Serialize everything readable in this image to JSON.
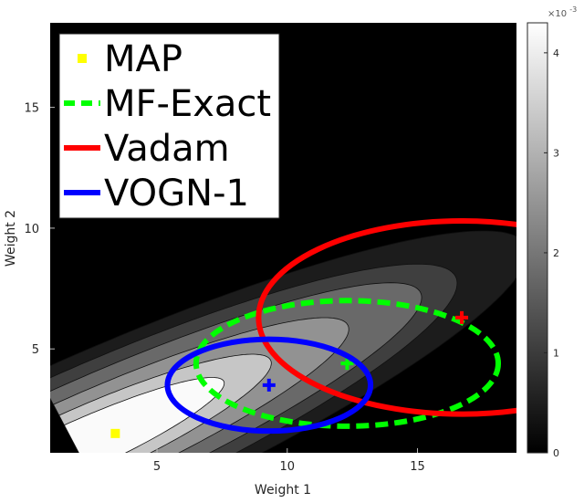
{
  "chart_data": {
    "type": "contour",
    "xlabel": "Weight 1",
    "ylabel": "Weight 2",
    "xlim": [
      0.9,
      18.8
    ],
    "ylim": [
      0.7,
      18.5
    ],
    "xticks": [
      5,
      10,
      15
    ],
    "yticks": [
      5,
      10,
      15
    ],
    "colorbar": {
      "range": [
        0,
        0.0043
      ],
      "ticks": [
        0,
        1,
        2,
        3,
        4
      ],
      "exponent_label": "×10",
      "exponent_power": "-3"
    },
    "contour_levels": [
      {
        "level": 0.0003,
        "color": "#1c1c1c",
        "center": [
          1.9,
          0.9
        ],
        "angle_deg": 26,
        "a": 19.2,
        "b": 3.5
      },
      {
        "level": 0.0008,
        "color": "#3f3f3f",
        "center": [
          1.9,
          0.9
        ],
        "angle_deg": 26,
        "a": 16.2,
        "b": 3.05
      },
      {
        "level": 0.0016,
        "color": "#696969",
        "center": [
          1.9,
          0.9
        ],
        "angle_deg": 26,
        "a": 14.7,
        "b": 2.55
      },
      {
        "level": 0.0024,
        "color": "#929292",
        "center": [
          1.9,
          0.9
        ],
        "angle_deg": 26,
        "a": 11.6,
        "b": 2.0
      },
      {
        "level": 0.0032,
        "color": "#c6c6c6",
        "center": [
          1.9,
          0.9
        ],
        "angle_deg": 26,
        "a": 8.3,
        "b": 1.5
      },
      {
        "level": 0.004,
        "color": "#fafafa",
        "center": [
          1.9,
          0.9
        ],
        "angle_deg": 26,
        "a": 6.3,
        "b": 1.05
      }
    ],
    "series": [
      {
        "name": "MAP",
        "kind": "point",
        "color": "#ffff00",
        "mean": [
          3.4,
          1.5
        ]
      },
      {
        "name": "MF-Exact",
        "kind": "ellipse",
        "color": "#00ff00",
        "style": "dashed",
        "mean": [
          12.3,
          4.4
        ],
        "radius": [
          5.8,
          2.6
        ]
      },
      {
        "name": "Vadam",
        "kind": "ellipse",
        "color": "#ff0000",
        "style": "solid",
        "mean": [
          16.7,
          6.3
        ],
        "radius": [
          7.8,
          4.0
        ]
      },
      {
        "name": "VOGN-1",
        "kind": "ellipse",
        "color": "#0000ff",
        "style": "solid",
        "mean": [
          9.3,
          3.5
        ],
        "radius": [
          3.9,
          1.9
        ]
      }
    ],
    "legend": {
      "placement": "top-left",
      "entries": [
        "MAP",
        "MF-Exact",
        "Vadam",
        "VOGN-1"
      ]
    }
  }
}
